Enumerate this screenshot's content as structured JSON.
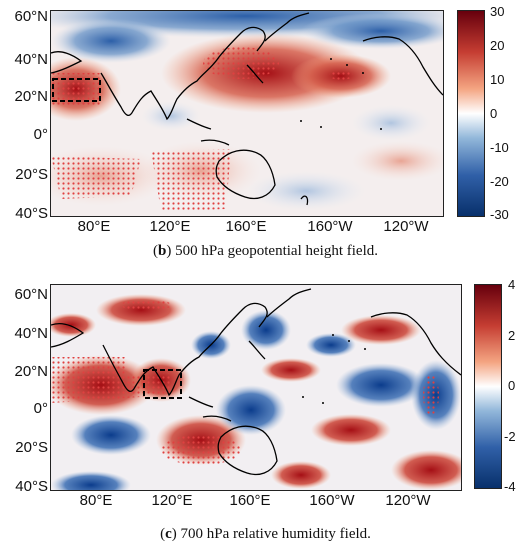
{
  "panels": [
    {
      "id": "b",
      "caption_letter": "b",
      "caption_text": " 500 hPa geopotential height field.",
      "lat_labels": [
        "60°N",
        "40°N",
        "20°N",
        "0°",
        "20°S",
        "40°S"
      ],
      "lon_labels": [
        "80°E",
        "120°E",
        "160°E",
        "160°W",
        "120°W"
      ],
      "colorbar": {
        "ticks": [
          "30",
          "20",
          "10",
          "0",
          "-10",
          "-20",
          "-30"
        ],
        "min": -30,
        "max": 30
      },
      "highlight_box": "black dashed box over India / Arabian Sea (20°N–30°N)"
    },
    {
      "id": "c",
      "caption_letter": "c",
      "caption_text": " 700 hPa relative humidity field.",
      "lat_labels": [
        "60°N",
        "40°N",
        "20°N",
        "0°",
        "20°S",
        "40°S"
      ],
      "lon_labels": [
        "80°E",
        "120°E",
        "160°E",
        "160°W",
        "120°W"
      ],
      "colorbar": {
        "ticks": [
          "4",
          "2",
          "0",
          "-2",
          "-4"
        ],
        "min": -4,
        "max": 4
      },
      "highlight_box": "black dashed box over Bay of Bengal / Indochina"
    }
  ],
  "colors": {
    "red": "#a50f15",
    "blue": "#08306b",
    "white": "#ffffff",
    "coast": "#000000",
    "stipple": "#e04040"
  }
}
